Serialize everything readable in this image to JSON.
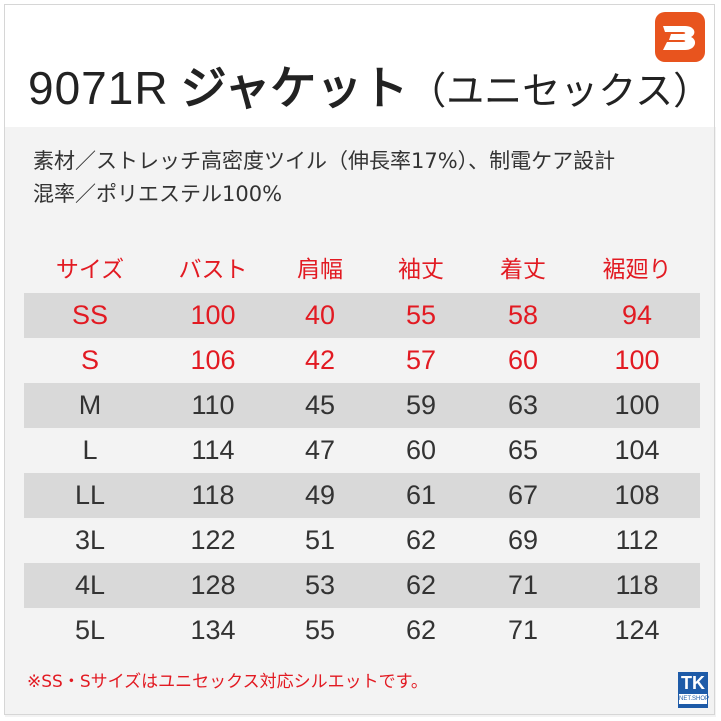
{
  "title": {
    "model": "9071R",
    "name": "ジャケット",
    "sub": "（ユニセックス）"
  },
  "brand": {
    "icon": "burtle-b-logo",
    "color": "#e8541e"
  },
  "spec": {
    "line1": "素材／ストレッチ高密度ツイル（伸長率17%）、制電ケア設計",
    "line2": "混率／ポリエステル100%"
  },
  "table": {
    "headers": [
      "サイズ",
      "バスト",
      "肩幅",
      "袖丈",
      "着丈",
      "裾廻り"
    ],
    "rows": [
      [
        "SS",
        "100",
        "40",
        "55",
        "58",
        "94"
      ],
      [
        "S",
        "106",
        "42",
        "57",
        "60",
        "100"
      ],
      [
        "M",
        "110",
        "45",
        "59",
        "63",
        "100"
      ],
      [
        "L",
        "114",
        "47",
        "60",
        "65",
        "104"
      ],
      [
        "LL",
        "118",
        "49",
        "61",
        "67",
        "108"
      ],
      [
        "3L",
        "122",
        "51",
        "62",
        "69",
        "112"
      ],
      [
        "4L",
        "128",
        "53",
        "62",
        "71",
        "118"
      ],
      [
        "5L",
        "134",
        "55",
        "62",
        "71",
        "124"
      ]
    ]
  },
  "note": "※SS・Sサイズはユニセックス対応シルエットです。",
  "shop": {
    "mark": "TK",
    "label": "NET.SHOP",
    "color": "#1e5ba8"
  },
  "colors": {
    "accent_red": "#e21a22",
    "row_shade": "#d9d9d9",
    "background": "#f3f3f3"
  }
}
